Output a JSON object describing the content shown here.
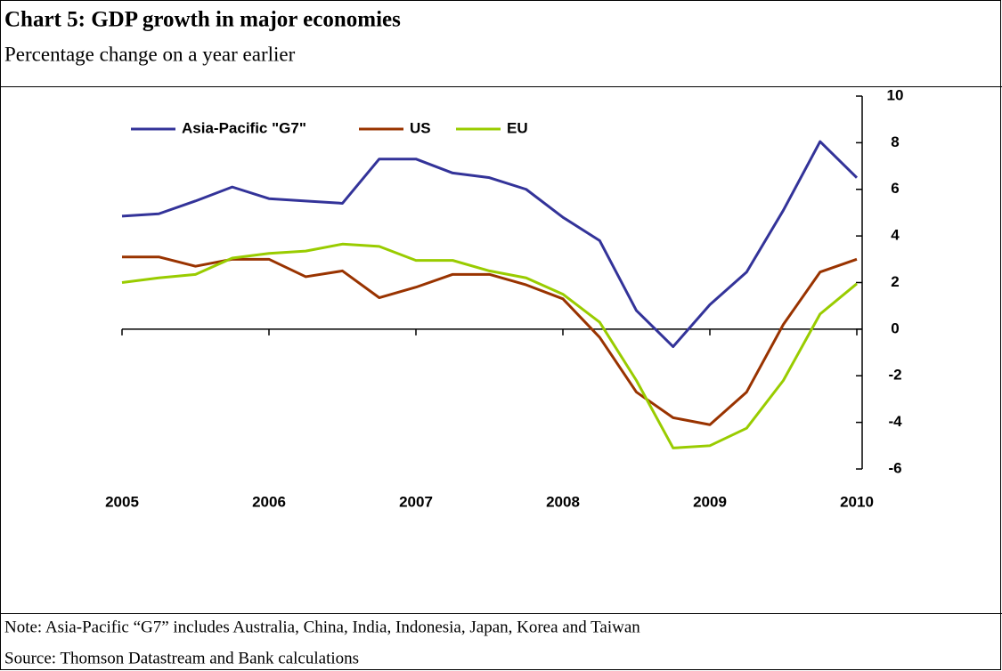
{
  "chart_data": {
    "type": "line",
    "title": "Chart 5: GDP growth in major economies",
    "subtitle": "Percentage change on a year earlier",
    "note": "Note: Asia-Pacific “G7” includes Australia, China, India, Indonesia, Japan, Korea and Taiwan",
    "source": "Source: Thomson Datastream and Bank calculations",
    "categories": [
      "2005",
      null,
      null,
      null,
      "2006",
      null,
      null,
      null,
      "2007",
      null,
      null,
      null,
      "2008",
      null,
      null,
      null,
      "2009",
      null,
      null,
      null,
      "2010"
    ],
    "series": [
      {
        "name": "Asia-Pacific \"G7\"",
        "color": "#333399",
        "values": [
          4.85,
          4.95,
          5.5,
          6.1,
          5.6,
          5.5,
          5.4,
          7.3,
          7.3,
          6.7,
          6.5,
          6.0,
          4.8,
          3.8,
          0.8,
          -0.75,
          1.05,
          2.45,
          5.1,
          8.05,
          6.5
        ]
      },
      {
        "name": "US",
        "color": "#993300",
        "values": [
          3.1,
          3.1,
          2.7,
          3.0,
          3.0,
          2.25,
          2.5,
          1.35,
          1.8,
          2.35,
          2.35,
          1.9,
          1.3,
          -0.35,
          -2.7,
          -3.8,
          -4.1,
          -2.7,
          0.2,
          2.45,
          3.0
        ]
      },
      {
        "name": "EU",
        "color": "#99cc00",
        "values": [
          2.0,
          2.2,
          2.35,
          3.05,
          3.25,
          3.35,
          3.65,
          3.55,
          2.95,
          2.95,
          2.5,
          2.2,
          1.5,
          0.3,
          -2.2,
          -5.1,
          -5.0,
          -4.25,
          -2.2,
          0.65,
          1.95
        ]
      }
    ],
    "ylim": [
      -6,
      10
    ],
    "yticks": [
      -6,
      -4,
      -2,
      0,
      2,
      4,
      6,
      8,
      10
    ],
    "legend": "top-left",
    "grid": false
  }
}
